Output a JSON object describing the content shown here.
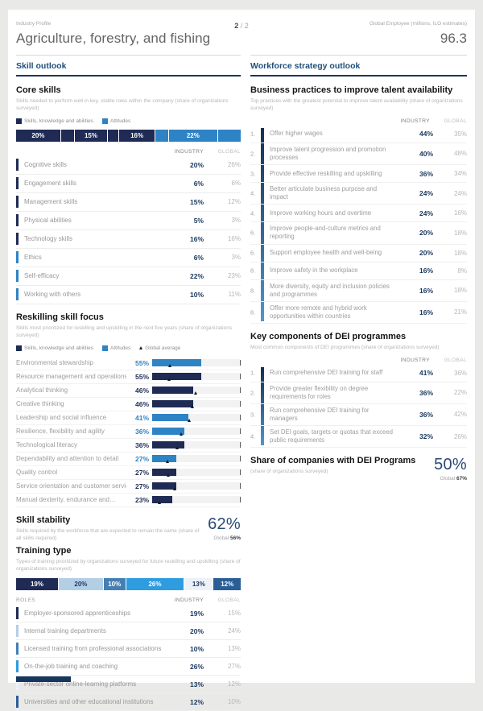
{
  "columns": {
    "industry": "INDUSTRY",
    "global": "GLOBAL"
  },
  "header": {
    "eyebrow": "Industry Profile",
    "title": "Agriculture, forestry, and fishing",
    "page_current": "2",
    "page_separator": "/",
    "page_total": "2",
    "metric_label": "Global Employee (millions, ILO estimates)",
    "metric_value": "96.3"
  },
  "colors": {
    "navy": "#1f2b55",
    "blue": "#2e83c5",
    "accent_dark": "#17365d"
  },
  "skill_outlook": {
    "section_title": "Skill outlook",
    "core_skills": {
      "title": "Core skills",
      "subtitle": "Skills needed to perform well in key, stable roles within the company (share of organizations surveyed)",
      "legend": [
        {
          "label": "Skills, knowledge and abilities",
          "type": "swatch",
          "color": "#1f2b55"
        },
        {
          "label": "Attitudes",
          "type": "swatch",
          "color": "#2e83c5"
        }
      ],
      "stacked_bar": [
        {
          "value": 20,
          "label": "20%",
          "color": "#1f2b55",
          "text_color": "#ffffff"
        },
        {
          "value": 6,
          "label": "",
          "color": "#1f2b55",
          "text_color": "#ffffff"
        },
        {
          "value": 15,
          "label": "15%",
          "color": "#1f2b55",
          "text_color": "#ffffff"
        },
        {
          "value": 5,
          "label": "",
          "color": "#1f2b55",
          "text_color": "#ffffff"
        },
        {
          "value": 16,
          "label": "16%",
          "color": "#1f2b55",
          "text_color": "#ffffff"
        },
        {
          "value": 6,
          "label": "",
          "color": "#2e83c5",
          "text_color": "#ffffff"
        },
        {
          "value": 22,
          "label": "22%",
          "color": "#2e83c5",
          "text_color": "#ffffff"
        },
        {
          "value": 10,
          "label": "",
          "color": "#2e83c5",
          "text_color": "#ffffff"
        }
      ],
      "rows": [
        {
          "label": "Cognitive skills",
          "industry": "20%",
          "global": "26%",
          "color": "#1f2b55"
        },
        {
          "label": "Engagement skills",
          "industry": "6%",
          "global": "6%",
          "color": "#1f2b55"
        },
        {
          "label": "Management skills",
          "industry": "15%",
          "global": "12%",
          "color": "#1f2b55"
        },
        {
          "label": "Physical abilities",
          "industry": "5%",
          "global": "3%",
          "color": "#1f2b55"
        },
        {
          "label": "Technology skills",
          "industry": "16%",
          "global": "16%",
          "color": "#1f2b55"
        },
        {
          "label": "Ethics",
          "industry": "6%",
          "global": "3%",
          "color": "#2e83c5"
        },
        {
          "label": "Self-efficacy",
          "industry": "22%",
          "global": "23%",
          "color": "#2e83c5"
        },
        {
          "label": "Working with others",
          "industry": "10%",
          "global": "11%",
          "color": "#2e83c5"
        }
      ]
    },
    "reskilling": {
      "title": "Reskilling skill focus",
      "subtitle": "Skills most prioritized for reskilling and upskilling in the next five years (share of organizations surveyed)",
      "legend": [
        {
          "label": "Skills, knowledge and abilities",
          "type": "swatch",
          "color": "#1f2b55"
        },
        {
          "label": "Attitudes",
          "type": "swatch",
          "color": "#2e83c5"
        },
        {
          "label": "Global average",
          "type": "triangle"
        }
      ],
      "rows": [
        {
          "label": "Environmental stewardship",
          "pct": "55%",
          "value": 55,
          "color": "#2e83c5",
          "global_avg": 20
        },
        {
          "label": "Resource management and operations",
          "pct": "55%",
          "value": 55,
          "color": "#1f2b55",
          "global_avg": 19
        },
        {
          "label": "Analytical thinking",
          "pct": "46%",
          "value": 46,
          "color": "#1f2b55",
          "global_avg": 49
        },
        {
          "label": "Creative thinking",
          "pct": "46%",
          "value": 46,
          "color": "#1f2b55",
          "global_avg": 45
        },
        {
          "label": "Leadership and social influence",
          "pct": "41%",
          "value": 41,
          "color": "#2e83c5",
          "global_avg": 42
        },
        {
          "label": "Resilience, flexibility and agility",
          "pct": "36%",
          "value": 36,
          "color": "#2e83c5",
          "global_avg": 33
        },
        {
          "label": "Technological literacy",
          "pct": "36%",
          "value": 36,
          "color": "#1f2b55",
          "global_avg": 28
        },
        {
          "label": "Dependability and attention to detail",
          "pct": "27%",
          "value": 27,
          "color": "#2e83c5",
          "global_avg": 17
        },
        {
          "label": "Quality control",
          "pct": "27%",
          "value": 27,
          "color": "#1f2b55",
          "global_avg": 18
        },
        {
          "label": "Service orientation and customer service",
          "pct": "27%",
          "value": 27,
          "color": "#1f2b55",
          "global_avg": 25
        },
        {
          "label": "Manual dexterity, endurance and…",
          "pct": "23%",
          "value": 23,
          "color": "#1f2b55",
          "global_avg": 8
        }
      ]
    },
    "skill_stability": {
      "title": "Skill stability",
      "subtitle": "Skills required by the workforce that are expected to remain the same (share of all skills required)",
      "industry_value": "62%",
      "global_label": "Global",
      "global_value": "56%"
    },
    "training_type": {
      "title": "Training type",
      "subtitle": "Types of training prioritized by organizations surveyed for future reskilling and upskilling (share of organizations surveyed)",
      "roles_label": "ROLES",
      "stacked_bar": [
        {
          "value": 19,
          "label": "19%",
          "color": "#1f2b55",
          "text_color": "#ffffff"
        },
        {
          "value": 20,
          "label": "20%",
          "color": "#b3cfe6",
          "text_color": "#1f3a63"
        },
        {
          "value": 10,
          "label": "10%",
          "color": "#447fb4",
          "text_color": "#ffffff"
        },
        {
          "value": 26,
          "label": "26%",
          "color": "#2f9ce0",
          "text_color": "#ffffff"
        },
        {
          "value": 13,
          "label": "13%",
          "color": "#edf2f8",
          "text_color": "#1f3a63"
        },
        {
          "value": 12,
          "label": "12%",
          "color": "#2b5e97",
          "text_color": "#ffffff"
        }
      ],
      "rows": [
        {
          "label": "Employer-sponsored apprenticeships",
          "industry": "19%",
          "global": "15%",
          "color": "#1f2b55"
        },
        {
          "label": "Internal training departments",
          "industry": "20%",
          "global": "24%",
          "color": "#b3cfe6"
        },
        {
          "label": "Licensed training from professional associations",
          "industry": "10%",
          "global": "13%",
          "color": "#447fb4"
        },
        {
          "label": "On-the-job training and coaching",
          "industry": "26%",
          "global": "27%",
          "color": "#2f9ce0"
        },
        {
          "label": "Private-sector online-learning platforms",
          "industry": "13%",
          "global": "12%",
          "color": "#edf2f8"
        },
        {
          "label": "Universities and other educational institutions",
          "industry": "12%",
          "global": "10%",
          "color": "#2b5e97"
        }
      ]
    }
  },
  "workforce_outlook": {
    "section_title": "Workforce strategy outlook",
    "business_practices": {
      "title": "Business practices to improve talent availability",
      "subtitle": "Top practices with the greatest potential to improve talent availability (share of organizations surveyed)",
      "rows": [
        {
          "rank": "1.",
          "label": "Offer higher wages",
          "industry": "44%",
          "global": "35%"
        },
        {
          "rank": "2.",
          "label": "Improve talent progression and promotion processes",
          "industry": "40%",
          "global": "48%"
        },
        {
          "rank": "3.",
          "label": "Provide effective reskilling and upskilling",
          "industry": "36%",
          "global": "34%"
        },
        {
          "rank": "4.",
          "label": "Better articulate business purpose and impact",
          "industry": "24%",
          "global": "24%"
        },
        {
          "rank": "4.",
          "label": "Improve working hours and overtime",
          "industry": "24%",
          "global": "16%"
        },
        {
          "rank": "6.",
          "label": "Improve people-and-culture metrics and reporting",
          "industry": "20%",
          "global": "18%"
        },
        {
          "rank": "6.",
          "label": "Support employee health and well-being",
          "industry": "20%",
          "global": "18%"
        },
        {
          "rank": "8.",
          "label": "Improve safety in the workplace",
          "industry": "16%",
          "global": "8%"
        },
        {
          "rank": "8.",
          "label": "More diversity, equity and inclusion policies and programmes",
          "industry": "16%",
          "global": "18%"
        },
        {
          "rank": "8.",
          "label": "Offer more remote and hybrid work opportunities within countries",
          "industry": "16%",
          "global": "21%"
        }
      ]
    },
    "dei_components": {
      "title": "Key components of DEI programmes",
      "subtitle": "Most common components of DEI programmes (share of organizations surveyed)",
      "rows": [
        {
          "rank": "1.",
          "label": "Run comprehensive DEI training for staff",
          "industry": "41%",
          "global": "36%"
        },
        {
          "rank": "2.",
          "label": "Provide greater flexibility on degree requirements for roles",
          "industry": "36%",
          "global": "22%"
        },
        {
          "rank": "3.",
          "label": "Run comprehensive DEI training for managers",
          "industry": "36%",
          "global": "42%"
        },
        {
          "rank": "4.",
          "label": "Set DEI goals, targets or quotas that exceed public requirements",
          "industry": "32%",
          "global": "26%"
        }
      ]
    },
    "dei_share": {
      "title": "Share of companies with DEI Programs",
      "subtitle": "(share of organizations surveyed)",
      "industry_value": "50%",
      "global_label": "Global",
      "global_value": "67%"
    }
  }
}
